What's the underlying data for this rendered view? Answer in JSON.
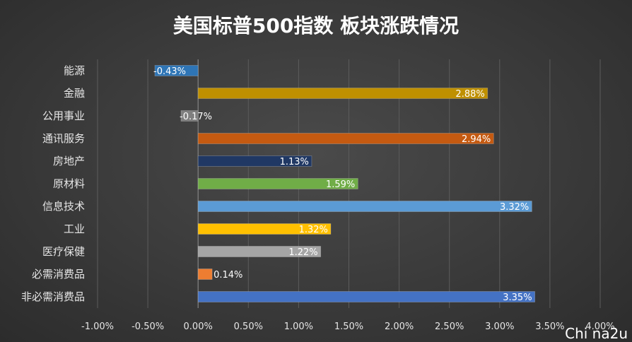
{
  "chart_data": {
    "type": "bar",
    "orientation": "horizontal",
    "title": "美国标普500指数 板块涨跌情况",
    "categories": [
      "能源",
      "金融",
      "公用事业",
      "通讯服务",
      "房地产",
      "原材料",
      "信息技术",
      "工业",
      "医疗保健",
      "必需消费品",
      "非必需消费品"
    ],
    "values": [
      -0.43,
      2.88,
      -0.17,
      2.94,
      1.13,
      1.59,
      3.32,
      1.32,
      1.22,
      0.14,
      3.35
    ],
    "data_labels": [
      "-0.43%",
      "2.88%",
      "-0.17%",
      "2.94%",
      "1.13%",
      "1.59%",
      "3.32%",
      "1.32%",
      "1.22%",
      "0.14%",
      "3.35%"
    ],
    "colors": [
      "#2e75b6",
      "#bf9000",
      "#7f7f7f",
      "#c55a11",
      "#203864",
      "#70ad47",
      "#5b9bd5",
      "#ffc000",
      "#a5a5a5",
      "#ed7d31",
      "#4472c4"
    ],
    "xlim": [
      -1.0,
      4.0
    ],
    "xticks": [
      -1.0,
      -0.5,
      0.0,
      0.5,
      1.0,
      1.5,
      2.0,
      2.5,
      3.0,
      3.5,
      4.0
    ],
    "xtick_labels": [
      "-1.00%",
      "-0.50%",
      "0.00%",
      "0.50%",
      "1.00%",
      "1.50%",
      "2.00%",
      "2.50%",
      "3.00%",
      "3.50%",
      "4.00%"
    ],
    "grid": "vertical",
    "legend": "none"
  },
  "watermark": "Chi na2u"
}
